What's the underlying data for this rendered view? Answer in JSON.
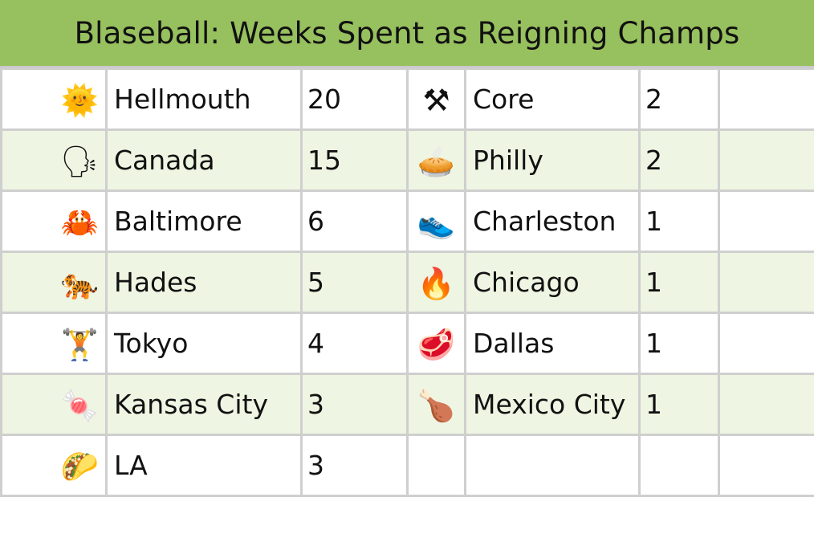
{
  "title": "Blaseball: Weeks Spent as Reigning Champs",
  "rows": [
    {
      "left": {
        "icon": "🌞",
        "icon_name": "sun-face-icon",
        "team": "Hellmouth",
        "weeks": "20"
      },
      "right": {
        "icon": "⚒",
        "icon_name": "hammer-pick-icon",
        "team": "Core",
        "weeks": "2"
      }
    },
    {
      "left": {
        "icon": "🗣",
        "icon_name": "speaking-head-icon",
        "team": "Canada",
        "weeks": "15"
      },
      "right": {
        "icon": "🥧",
        "icon_name": "pie-icon",
        "team": "Philly",
        "weeks": "2"
      }
    },
    {
      "left": {
        "icon": "🦀",
        "icon_name": "crab-icon",
        "team": "Baltimore",
        "weeks": "6"
      },
      "right": {
        "icon": "👟",
        "icon_name": "sneaker-icon",
        "team": "Charleston",
        "weeks": "1"
      }
    },
    {
      "left": {
        "icon": "🐅",
        "icon_name": "tiger-icon",
        "team": "Hades",
        "weeks": "5"
      },
      "right": {
        "icon": "🔥",
        "icon_name": "fire-icon",
        "team": "Chicago",
        "weeks": "1"
      }
    },
    {
      "left": {
        "icon": "🏋",
        "icon_name": "weightlifter-icon",
        "team": "Tokyo",
        "weeks": "4"
      },
      "right": {
        "icon": "🥩",
        "icon_name": "steak-icon",
        "team": "Dallas",
        "weeks": "1"
      }
    },
    {
      "left": {
        "icon": "🍬",
        "icon_name": "candy-icon",
        "team": "Kansas City",
        "weeks": "3"
      },
      "right": {
        "icon": "🍗",
        "icon_name": "drumstick-icon",
        "team": "Mexico City",
        "weeks": "1"
      }
    },
    {
      "left": {
        "icon": "🌮",
        "icon_name": "taco-icon",
        "team": "LA",
        "weeks": "3"
      },
      "right": {
        "icon": "",
        "icon_name": "",
        "team": "",
        "weeks": ""
      }
    }
  ]
}
